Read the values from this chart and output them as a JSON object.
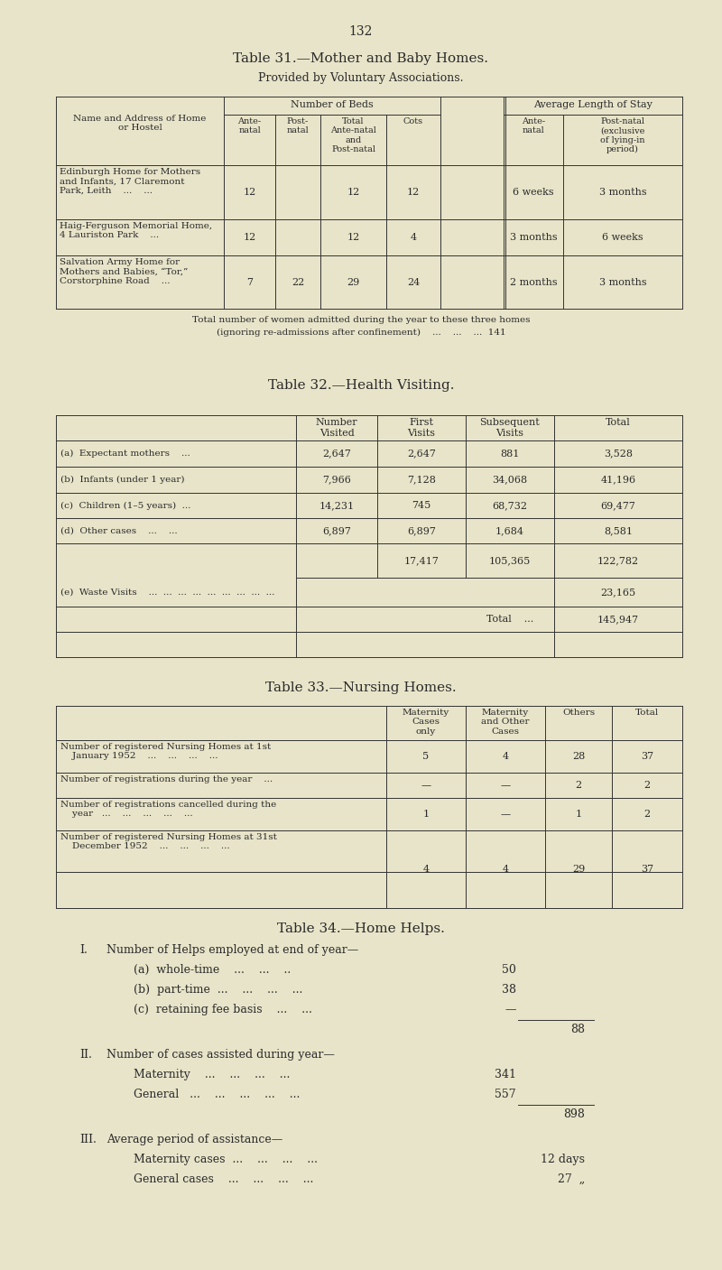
{
  "bg_color": "#e8e4c9",
  "text_color": "#2a2a2a",
  "page_number": "132",
  "table31": {
    "title": "Table 31.—Mother and Baby Homes.",
    "subtitle": "Provided by Voluntary Associations.",
    "col_bounds": [
      62,
      248,
      305,
      355,
      428,
      488,
      558,
      624,
      756
    ],
    "row_bounds": [
      107,
      127,
      183,
      243,
      283,
      342
    ],
    "rows": [
      {
        "name": "Edinburgh Home for Mothers\nand Infants, 17 Claremont\nPark, Leith    ...    ...",
        "ante": "12",
        "post": "",
        "total": "12",
        "cots": "12",
        "avg_ante": "6 weeks",
        "avg_post": "3 months"
      },
      {
        "name": "Haig-Ferguson Memorial Home,\n4 Lauriston Park    ...",
        "ante": "12",
        "post": "",
        "total": "12",
        "cots": "4",
        "avg_ante": "3 months",
        "avg_post": "6 weeks"
      },
      {
        "name": "Salvation Army Home for\nMothers and Babies, “Tor,”\nCorstorphine Road    ...",
        "ante": "7",
        "post": "22",
        "total": "29",
        "cots": "24",
        "avg_ante": "2 months",
        "avg_post": "3 months"
      }
    ],
    "footer_line1": "Total number of women admitted during the year to these three homes",
    "footer_line2": "(ignoring re-admissions after confinement)    ...    ...    ...  141"
  },
  "table32": {
    "title": "Table 32.—Health Visiting.",
    "col_bounds": [
      62,
      328,
      418,
      516,
      614,
      756
    ],
    "row_bounds": [
      460,
      488,
      517,
      546,
      574,
      602,
      640,
      672,
      700,
      728
    ],
    "rows": [
      [
        "(a)  Expectant mothers    ...",
        "2,647",
        "2,647",
        "881",
        "3,528"
      ],
      [
        "(b)  Infants (under 1 year)",
        "7,966",
        "7,128",
        "34,068",
        "41,196"
      ],
      [
        "(c)  Children (1–5 years)  ...",
        "14,231",
        "745",
        "68,732",
        "69,477"
      ],
      [
        "(d)  Other cases    ...    ...",
        "6,897",
        "6,897",
        "1,684",
        "8,581"
      ]
    ],
    "subtotal": [
      "",
      "",
      "17,417",
      "105,365",
      "122,782"
    ],
    "waste": "(e)  Waste Visits    ...  ...  ...  ...  ...  ...  ...  ...  ...",
    "waste_val": "23,165",
    "total_val": "145,947"
  },
  "table33": {
    "title": "Table 33.—Nursing Homes.",
    "col_bounds": [
      62,
      428,
      516,
      604,
      678,
      756
    ],
    "row_bounds": [
      782,
      820,
      856,
      884,
      920,
      966,
      1006
    ],
    "rows": [
      [
        "Number of registered Nursing Homes at 1st\n    January 1952    ...    ...    ...    ...",
        "5",
        "4",
        "28",
        "37"
      ],
      [
        "Number of registrations during the year    ...",
        "—",
        "—",
        "2",
        "2"
      ],
      [
        "Number of registrations cancelled during the\n    year   ...    ...    ...    ...    ...",
        "1",
        "—",
        "1",
        "2"
      ],
      [
        "Number of registered Nursing Homes at 31st\n    December 1952    ...    ...    ...    ...",
        "4",
        "4",
        "29",
        "37"
      ]
    ]
  },
  "table34": {
    "title": "Table 34.—Home Helps.",
    "section1_heading": "I.   Number of Helps employed at end of year—",
    "section1_items": [
      [
        "(a)  whole-time    ...    ...    ..",
        "50"
      ],
      [
        "(b)  part-time  ...    ...    ...    ...",
        "38"
      ],
      [
        "(c)  retaining fee basis    ...    ...",
        "—"
      ]
    ],
    "section1_total": "88",
    "section2_heading": "II.   Number of cases assisted during year—",
    "section2_items": [
      [
        "Maternity    ...    ...    ...    ...",
        "341"
      ],
      [
        "General   ...    ...    ...    ...    ...",
        "557"
      ]
    ],
    "section2_total": "898",
    "section3_heading": "III.  Average period of assistance—",
    "section3_items": [
      [
        "Maternity cases  ...    ...    ...    ...",
        "12 days"
      ],
      [
        "General cases    ...    ...    ...    ...",
        "27  „"
      ]
    ]
  }
}
